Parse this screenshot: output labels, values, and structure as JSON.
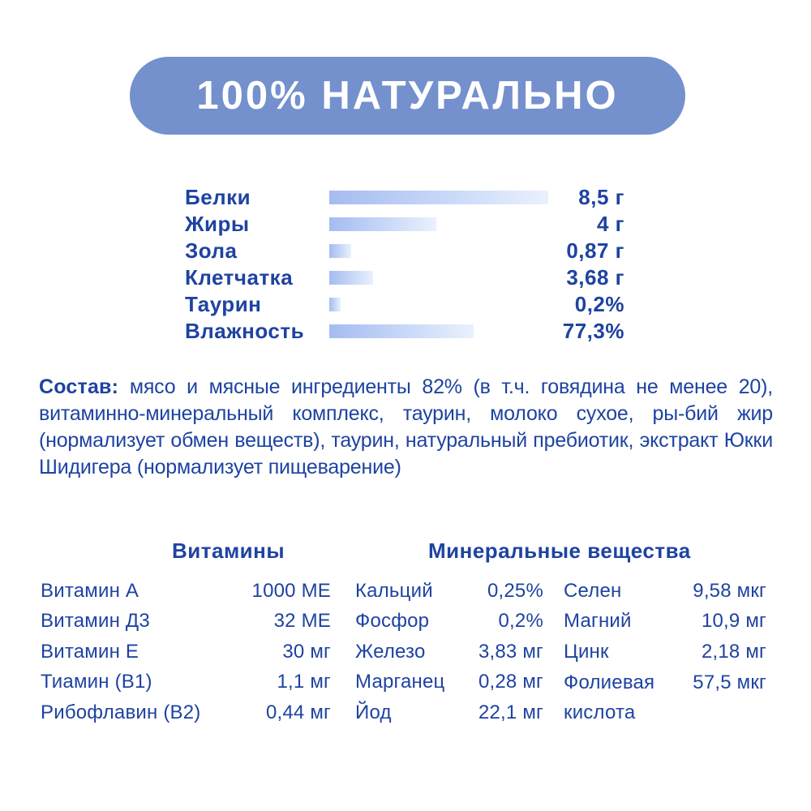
{
  "badge": {
    "title": "100% НАТУРАЛЬНО"
  },
  "colors": {
    "accent_pill": "#7490cd",
    "text_navy": "#1e43a1",
    "bar_gradient_start": "#a5bcf1",
    "bar_gradient_end": "#eaf1fd"
  },
  "chart_data": {
    "type": "bar",
    "title": "",
    "categories": [
      "Белки",
      "Жиры",
      "Зола",
      "Клетчатка",
      "Таурин",
      "Влажность"
    ],
    "values": [
      8.5,
      4,
      0.87,
      3.68,
      0.2,
      77.3
    ],
    "value_labels": [
      "8,5 г",
      "4 г",
      "0,87 г",
      "3,68 г",
      "0,2%",
      "77,3%"
    ],
    "rows": [
      {
        "label": "Белки",
        "value": "8,5 г",
        "bar_pct": 100
      },
      {
        "label": "Жиры",
        "value": "4 г",
        "bar_pct": 49
      },
      {
        "label": "Зола",
        "value": "0,87 г",
        "bar_pct": 10
      },
      {
        "label": "Клетчатка",
        "value": "3,68 г",
        "bar_pct": 20
      },
      {
        "label": "Таурин",
        "value": "0,2%",
        "bar_pct": 5
      },
      {
        "label": "Влажность",
        "value": "77,3%",
        "bar_pct": 66
      }
    ]
  },
  "composition": {
    "label": "Состав:",
    "text": " мясо и мясные ингредиенты 82% (в т.ч. говядина не менее 20), витаминно-минеральный комплекс, таурин, молоко сухое, ры-бий жир (нормализует обмен веществ), таурин, натуральный пребиотик, экстракт Юкки Шидигера (нормализует пищеварение)"
  },
  "tables": {
    "vitamins_title": "Витамины",
    "minerals_title": "Минеральные вещества",
    "vitamins": [
      {
        "name": "Витамин А",
        "value": "1000 МЕ"
      },
      {
        "name": "Витамин Д3",
        "value": "32 МЕ"
      },
      {
        "name": "Витамин Е",
        "value": "30 мг"
      },
      {
        "name": "Тиамин (В1)",
        "value": "1,1 мг"
      },
      {
        "name": "Рибофлавин (В2)",
        "value": "0,44 мг"
      }
    ],
    "minerals_col1": [
      {
        "name": "Кальций",
        "value": "0,25%"
      },
      {
        "name": "Фосфор",
        "value": "0,2%"
      },
      {
        "name": "Железо",
        "value": "3,83 мг"
      },
      {
        "name": "Марганец",
        "value": "0,28 мг"
      },
      {
        "name": "Йод",
        "value": "22,1 мг"
      }
    ],
    "minerals_col2": [
      {
        "name": "Селен",
        "value": "9,58 мкг"
      },
      {
        "name": "Магний",
        "value": "10,9 мг"
      },
      {
        "name": "Цинк",
        "value": "2,18 мг"
      },
      {
        "name": "Фолиевая кислота",
        "value": "57,5 мкг"
      }
    ]
  }
}
